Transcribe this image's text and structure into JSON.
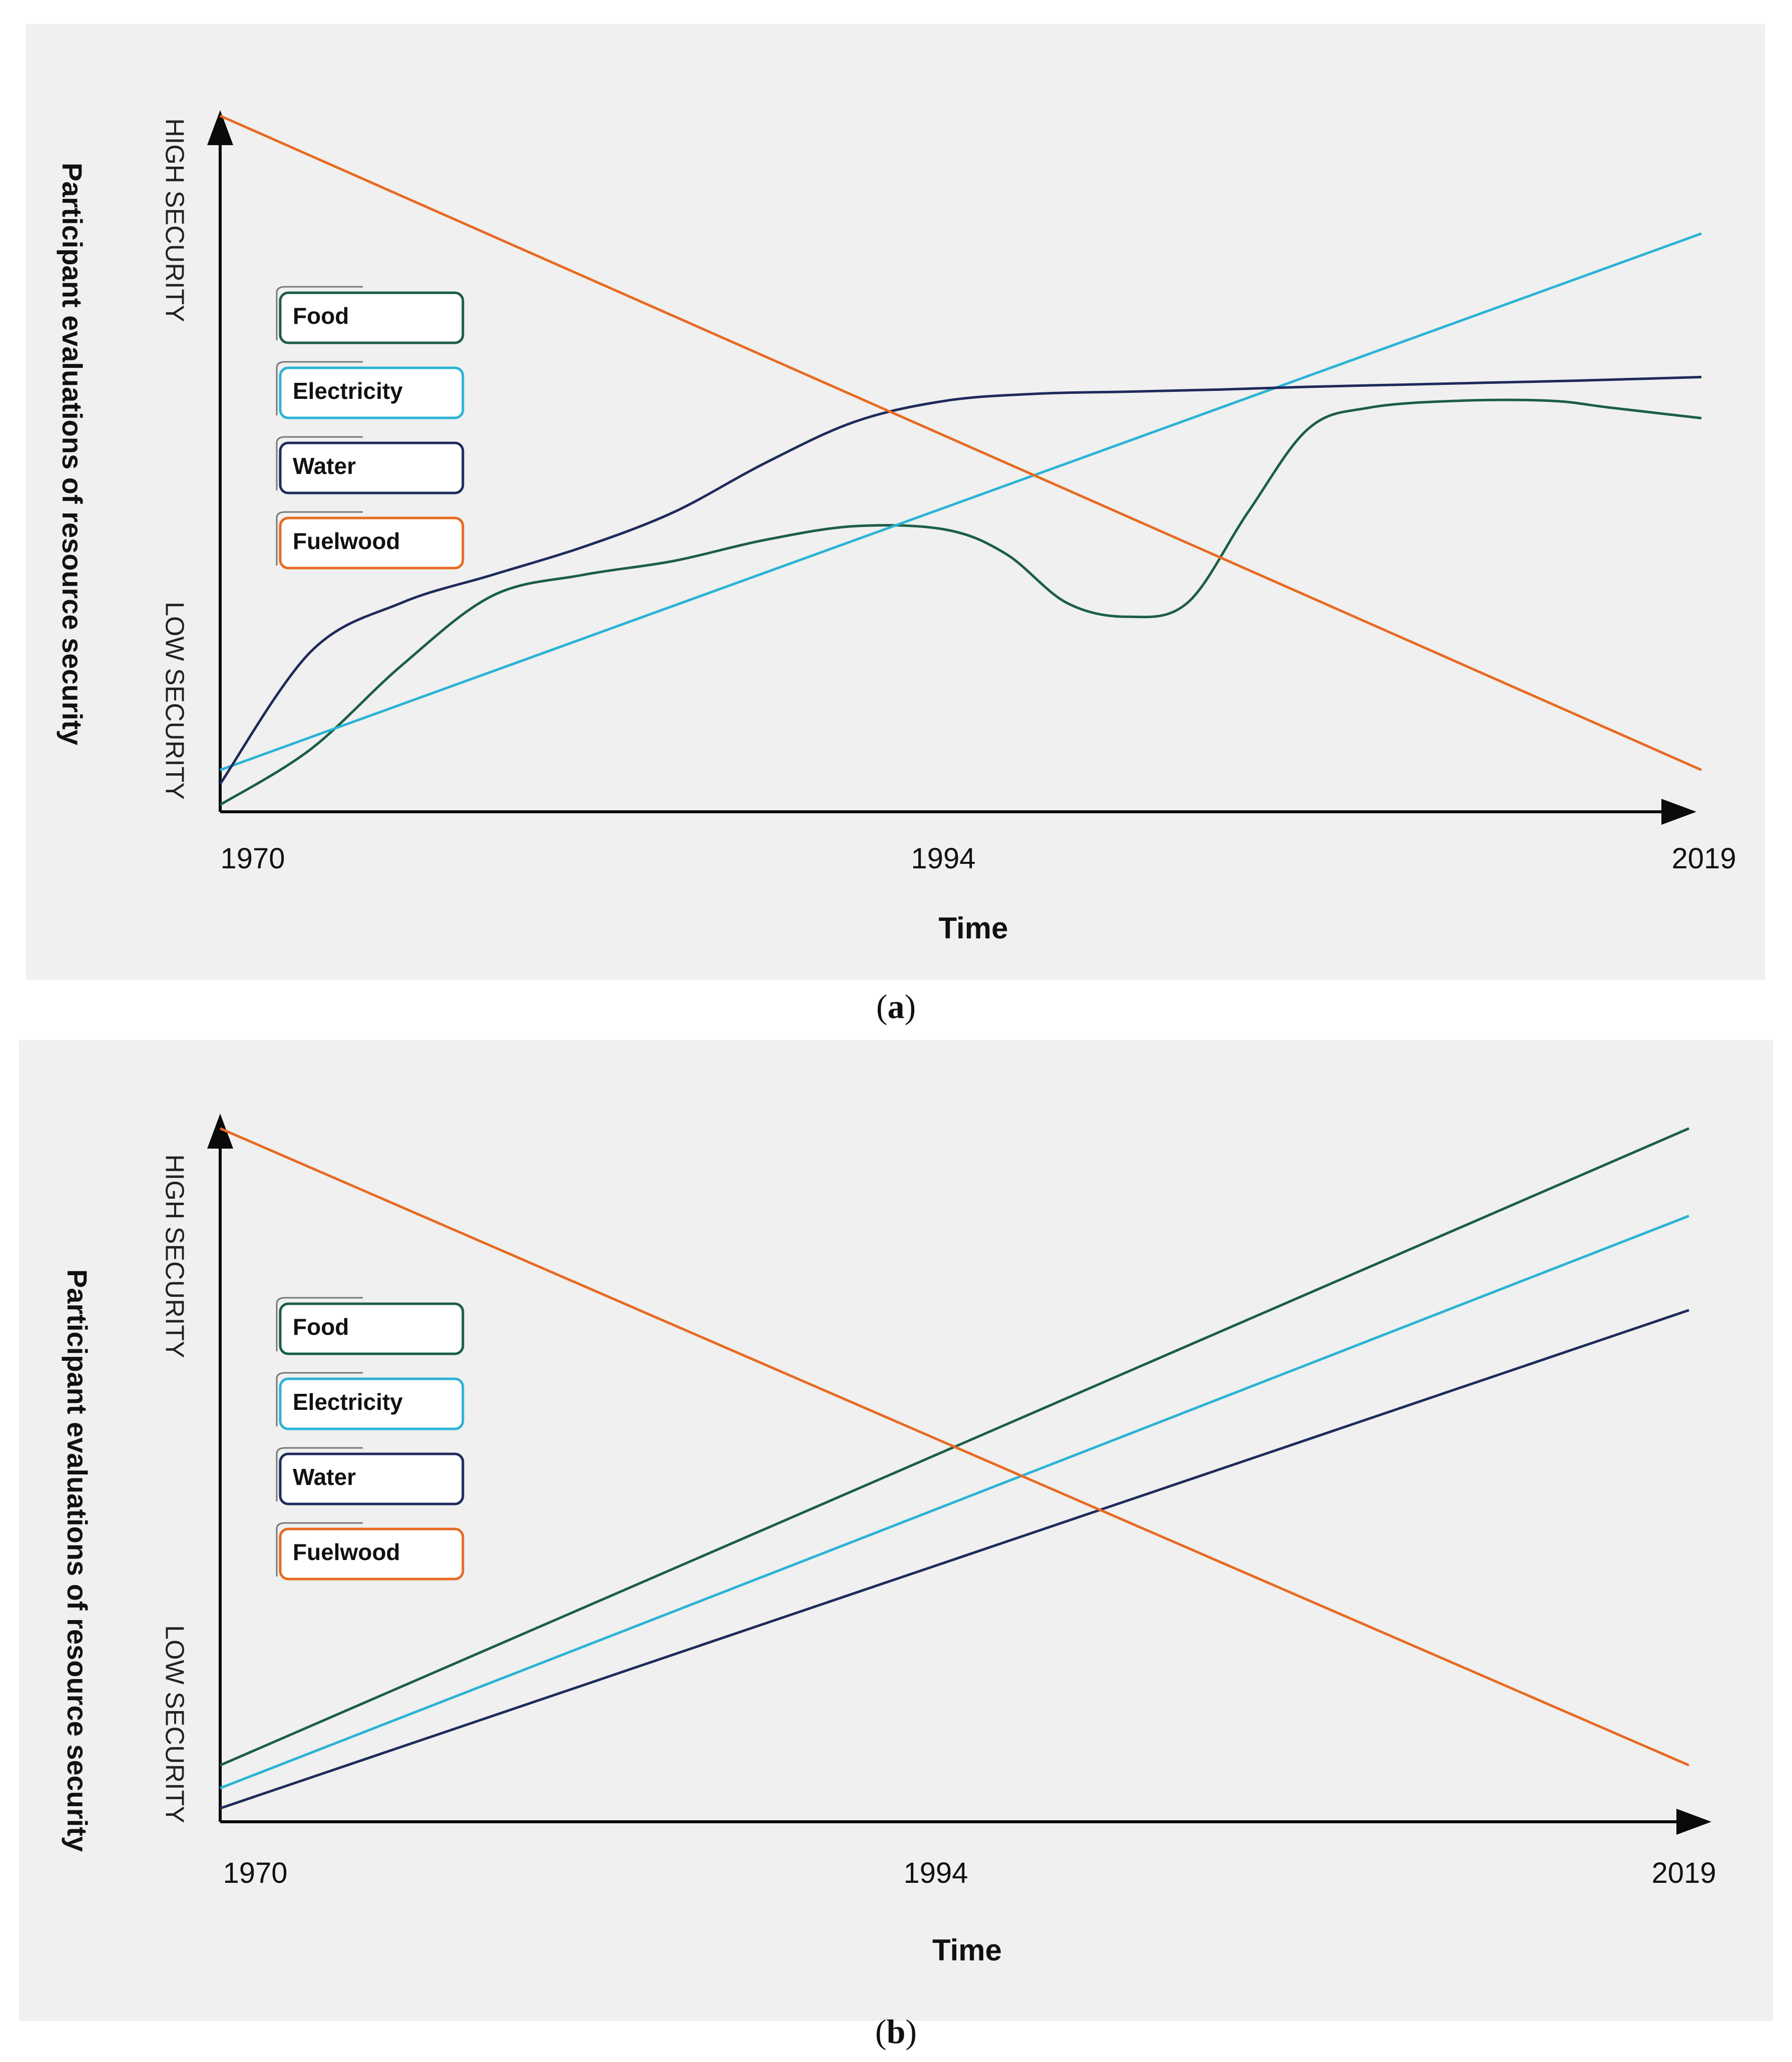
{
  "colors": {
    "background": "#eff0ef",
    "axis": "#0a0a0a",
    "Food": "#1c5e45",
    "Electricity": "#2bb3d6",
    "Water": "#1f2a5c",
    "Fuelwood": "#e86a22"
  },
  "captions": {
    "a": "a",
    "b": "b"
  },
  "chart_data": [
    {
      "type": "line",
      "panel": "a",
      "ylabel": "Participant evaluations of resource security",
      "xlabel": "Time",
      "y_high_label": "HIGH SECURITY",
      "y_low_label": "LOW SECURITY",
      "xlim": [
        1970,
        2019
      ],
      "ylim": [
        0,
        10
      ],
      "x_ticks": [
        "1970",
        "1994",
        "2019"
      ],
      "legend": [
        "Food",
        "Electricity",
        "Water",
        "Fuelwood"
      ],
      "legend_placement": "upper-left",
      "series": [
        {
          "name": "Food",
          "x": [
            1970,
            1973,
            1976,
            1979,
            1982,
            1985,
            1988,
            1991,
            1994,
            1996,
            1998,
            2000,
            2002,
            2004,
            2006,
            2008,
            2011,
            2014,
            2016,
            2019
          ],
          "y": [
            0.1,
            0.9,
            2.1,
            3.1,
            3.4,
            3.6,
            3.9,
            4.1,
            4.05,
            3.7,
            3.0,
            2.8,
            3.0,
            4.3,
            5.5,
            5.8,
            5.9,
            5.9,
            5.8,
            5.65
          ]
        },
        {
          "name": "Electricity",
          "x": [
            1970,
            2019
          ],
          "y": [
            0.6,
            8.3
          ]
        },
        {
          "name": "Water",
          "x": [
            1970,
            1973,
            1976,
            1979,
            1982,
            1985,
            1988,
            1991,
            1994,
            1997,
            2000,
            2003,
            2006,
            2009,
            2012,
            2015,
            2019
          ],
          "y": [
            0.4,
            2.3,
            3.0,
            3.4,
            3.8,
            4.3,
            5.0,
            5.6,
            5.9,
            6.0,
            6.03,
            6.06,
            6.1,
            6.13,
            6.16,
            6.19,
            6.24
          ]
        },
        {
          "name": "Fuelwood",
          "x": [
            1970,
            2019
          ],
          "y": [
            9.99,
            0.6
          ]
        }
      ]
    },
    {
      "type": "line",
      "panel": "b",
      "ylabel": "Participant evaluations of resource security",
      "xlabel": "Time",
      "y_high_label": "HIGH SECURITY",
      "y_low_label": "LOW SECURITY",
      "xlim": [
        1970,
        2019
      ],
      "ylim": [
        0,
        10
      ],
      "x_ticks": [
        "1970",
        "1994",
        "2019"
      ],
      "legend": [
        "Food",
        "Electricity",
        "Water",
        "Fuelwood"
      ],
      "legend_placement": "upper-left",
      "series": [
        {
          "name": "Food",
          "x": [
            1970,
            2019
          ],
          "y": [
            0.84,
            10.3
          ]
        },
        {
          "name": "Electricity",
          "x": [
            1970,
            2019
          ],
          "y": [
            0.5,
            9.0
          ]
        },
        {
          "name": "Water",
          "x": [
            1970,
            2019
          ],
          "y": [
            0.2,
            7.6
          ]
        },
        {
          "name": "Fuelwood",
          "x": [
            1970,
            2019
          ],
          "y": [
            10.3,
            0.84
          ]
        }
      ]
    }
  ]
}
